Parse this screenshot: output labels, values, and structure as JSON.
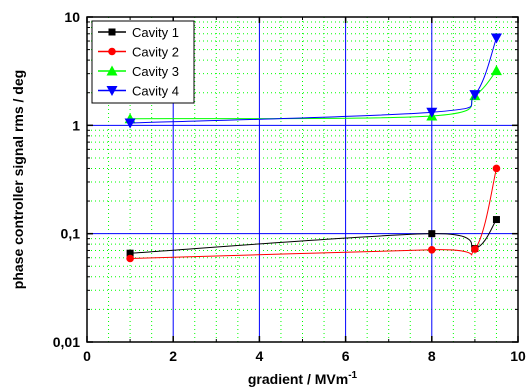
{
  "chart_data": {
    "type": "scatter",
    "xlabel": "gradient / MVm",
    "xlabel_superscript": "-1",
    "ylabel": "phase controller signal rms / deg",
    "xlim": [
      0,
      10
    ],
    "ylim": [
      0.01,
      10
    ],
    "y_scale": "log",
    "x_ticks": [
      0,
      2,
      4,
      6,
      8,
      10
    ],
    "x_tick_labels": [
      "0",
      "2",
      "4",
      "6",
      "8",
      "10"
    ],
    "y_ticks": [
      0.01,
      0.1,
      1,
      10
    ],
    "y_tick_labels": [
      "0,01",
      "0,1",
      "1",
      "10"
    ],
    "grid": "on",
    "legend_position": "top-left",
    "series": [
      {
        "name": "Cavity 1",
        "color": "#000000",
        "marker": "square",
        "x": [
          1,
          8,
          9,
          9.5
        ],
        "y": [
          0.066,
          0.1,
          0.073,
          0.135
        ]
      },
      {
        "name": "Cavity 2",
        "color": "#ff0000",
        "marker": "circle",
        "x": [
          1,
          8,
          9,
          9.5
        ],
        "y": [
          0.059,
          0.071,
          0.072,
          0.4
        ]
      },
      {
        "name": "Cavity 3",
        "color": "#00ff00",
        "marker": "triangle-up",
        "x": [
          1,
          8,
          9,
          9.5
        ],
        "y": [
          1.15,
          1.22,
          1.88,
          3.2
        ]
      },
      {
        "name": "Cavity 4",
        "color": "#0000ff",
        "marker": "triangle-down",
        "x": [
          1,
          8,
          9,
          9.5
        ],
        "y": [
          1.05,
          1.32,
          1.92,
          6.4
        ]
      }
    ]
  }
}
